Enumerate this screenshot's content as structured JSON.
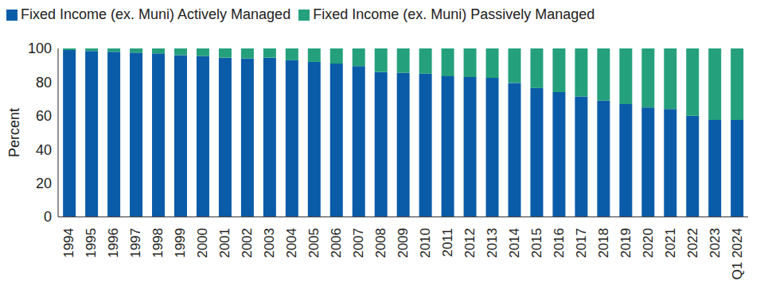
{
  "chart_data": {
    "type": "bar",
    "stacked": true,
    "legend": "top-left",
    "grid": false,
    "y_label": "Percent",
    "categories": [
      "1994",
      "1995",
      "1996",
      "1997",
      "1998",
      "1999",
      "2000",
      "2001",
      "2002",
      "2003",
      "2004",
      "2005",
      "2006",
      "2007",
      "2008",
      "2009",
      "2010",
      "2011",
      "2012",
      "2013",
      "2014",
      "2015",
      "2016",
      "2017",
      "2018",
      "2019",
      "2020",
      "2021",
      "2022",
      "2023",
      "Q1 2024"
    ],
    "ylim": [
      0,
      100
    ],
    "yticks": [
      0,
      20,
      40,
      60,
      80,
      100
    ],
    "series": [
      {
        "name": "Fixed Income (ex. Muni) Actively Managed",
        "color": "#0b5ca8",
        "values": [
          99,
          98.5,
          98,
          97.5,
          97,
          96,
          95.5,
          94.5,
          94,
          94.5,
          93,
          92,
          91,
          89.5,
          86,
          85.5,
          85,
          83.5,
          83,
          82.5,
          79.5,
          76.5,
          74,
          71.5,
          69,
          67,
          65,
          64,
          60,
          57.5,
          57.5
        ]
      },
      {
        "name": "Fixed Income (ex. Muni) Passively Managed",
        "color": "#25a07d",
        "values": [
          1,
          1.5,
          2,
          2.5,
          3,
          4,
          4.5,
          5.5,
          6,
          5.5,
          7,
          8,
          9,
          10.5,
          14,
          14.5,
          15,
          16.5,
          17,
          17.5,
          20.5,
          23.5,
          26,
          28.5,
          31,
          33,
          35,
          36,
          40,
          42.5,
          42.5
        ]
      }
    ]
  }
}
